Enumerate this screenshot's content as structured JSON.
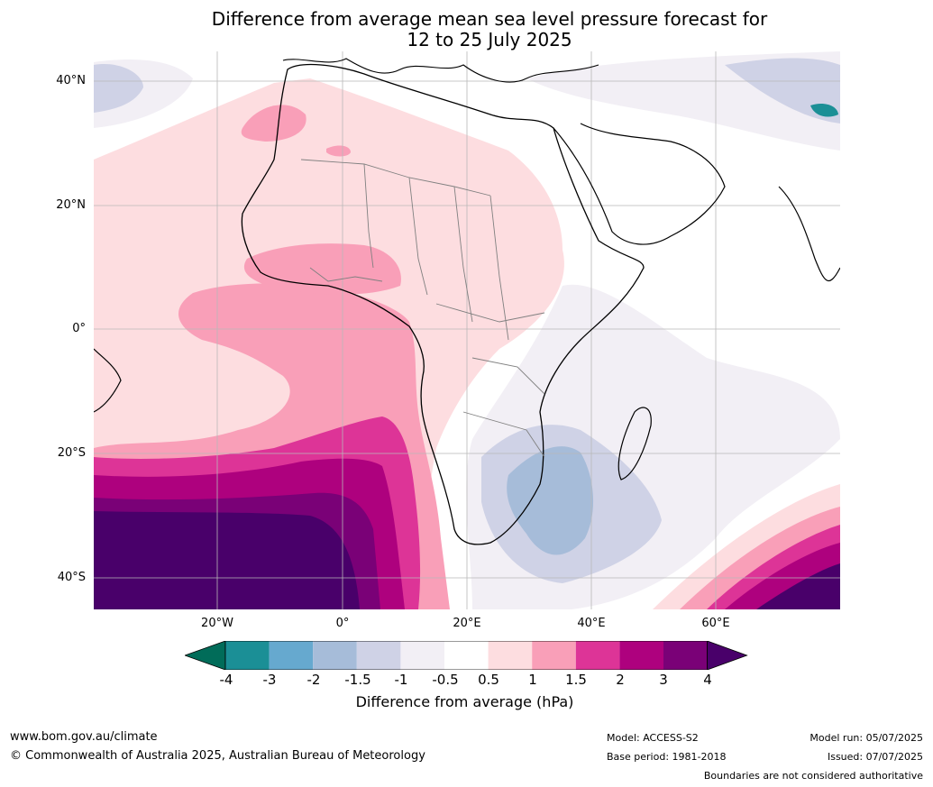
{
  "title": {
    "line1": "Difference from average mean sea level pressure forecast for",
    "line2": "12 to 25 July 2025"
  },
  "axes": {
    "lat_labels": [
      "40°N",
      "20°N",
      "0°",
      "20°S",
      "40°S"
    ],
    "lon_labels": [
      "20°W",
      "0°",
      "20°E",
      "40°E",
      "60°E"
    ]
  },
  "colorbar": {
    "ticks": [
      "-4",
      "-3",
      "-2",
      "-1.5",
      "-1",
      "-0.5",
      "0.5",
      "1",
      "1.5",
      "2",
      "3",
      "4"
    ],
    "colors": [
      "#1b8f96",
      "#66a9cf",
      "#a6bcd9",
      "#cfd2e6",
      "#f2eff5",
      "#ffffff",
      "#fddde0",
      "#f99fb8",
      "#dd3497",
      "#ae017e",
      "#7a0177"
    ],
    "under_color": "#016c59",
    "over_color": "#49006a",
    "label": "Difference from average (hPa)"
  },
  "footer": {
    "website": "www.bom.gov.au/climate",
    "copyright": "© Commonwealth of Australia 2025, Australian Bureau of Meteorology",
    "model": "Model: ACCESS-S2",
    "base_period": "Base period: 1981-2018",
    "model_run": "Model run: 05/07/2025",
    "issued": "Issued: 07/07/2025",
    "disclaimer": "Boundaries are not considered authoritative"
  }
}
